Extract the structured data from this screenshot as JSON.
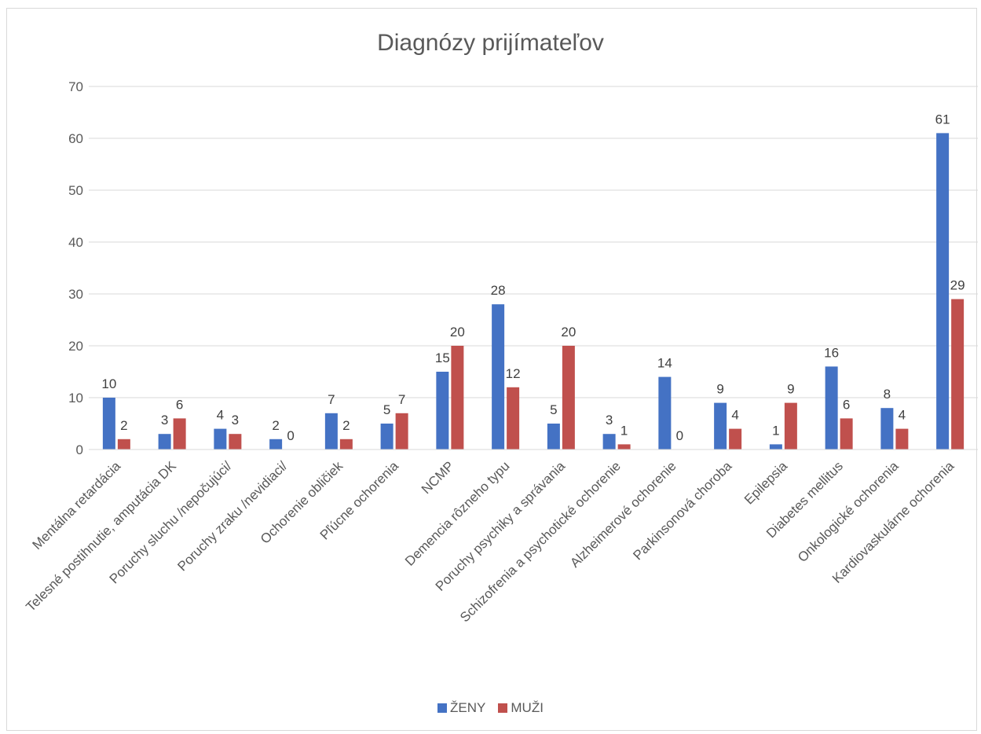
{
  "chart_data": {
    "type": "bar",
    "title": "Diagnózy prijímateľov",
    "xlabel": "",
    "ylabel": "",
    "ylim": [
      0,
      70
    ],
    "yticks": [
      0,
      10,
      20,
      30,
      40,
      50,
      60,
      70
    ],
    "grid": true,
    "legend_position": "bottom",
    "categories": [
      "Mentálna retardácia",
      "Telesné postihnutie, amputácia DK",
      "Poruchy sluchu /nepočujúci/",
      "Poruchy zraku /nevidiaci/",
      "Ochorenie obličiek",
      "Pľúcne ochorenia",
      "NCMP",
      "Demencia rôzneho typu",
      "Poruchy psychiky a správania",
      "Schizofrenia a psychotické ochorenie",
      "Alzheimerové ochorenie",
      "Parkinsonová choroba",
      "Epilepsia",
      "Diabetes mellitus",
      "Onkologické ochorenia",
      "Kardiovaskulárne ochorenia"
    ],
    "series": [
      {
        "name": "ŽENY",
        "color": "#4472c4",
        "values": [
          10,
          3,
          4,
          2,
          7,
          5,
          15,
          28,
          5,
          3,
          14,
          9,
          1,
          16,
          8,
          61
        ]
      },
      {
        "name": "MUŽI",
        "color": "#c0504d",
        "values": [
          2,
          6,
          3,
          0,
          2,
          7,
          20,
          12,
          20,
          1,
          0,
          4,
          9,
          6,
          4,
          29
        ]
      }
    ]
  }
}
